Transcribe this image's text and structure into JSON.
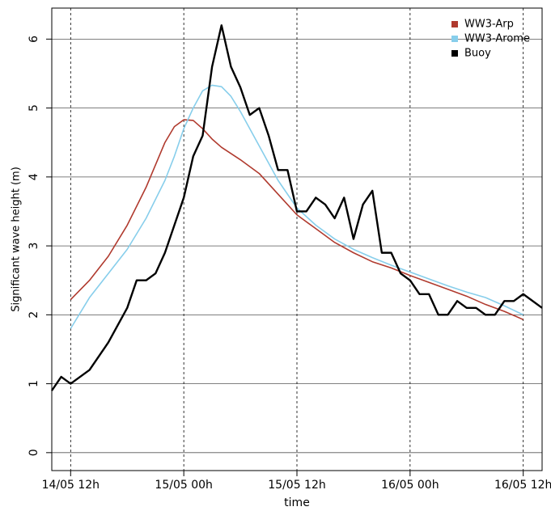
{
  "chart_data": {
    "type": "line",
    "x_label": "time",
    "y_label": "Significant wave height (m)",
    "xlim": [
      -2,
      50
    ],
    "ylim": [
      -0.26,
      6.45
    ],
    "xticks": [
      {
        "value": 0,
        "label": "14/05 12h"
      },
      {
        "value": 12,
        "label": "15/05 00h"
      },
      {
        "value": 24,
        "label": "15/05 12h"
      },
      {
        "value": 36,
        "label": "16/05 00h"
      },
      {
        "value": 48,
        "label": "16/05 12h"
      }
    ],
    "yticks": [
      0,
      1,
      2,
      3,
      4,
      5,
      6
    ],
    "grid": true,
    "legend": "top-right",
    "series": [
      {
        "name": "WW3-Arp",
        "color": "#b03a2e",
        "x": [
          0,
          2,
          4,
          6,
          8,
          10,
          11,
          12,
          13,
          14,
          15,
          16,
          18,
          20,
          22,
          24,
          26,
          28,
          30,
          32,
          34,
          36,
          38,
          40,
          42,
          44,
          46,
          48
        ],
        "values": [
          2.22,
          2.5,
          2.85,
          3.3,
          3.85,
          4.5,
          4.73,
          4.83,
          4.82,
          4.7,
          4.55,
          4.43,
          4.25,
          4.05,
          3.75,
          3.45,
          3.25,
          3.05,
          2.9,
          2.77,
          2.68,
          2.57,
          2.47,
          2.37,
          2.27,
          2.15,
          2.05,
          1.93
        ]
      },
      {
        "name": "WW3-Arome",
        "color": "#87ceeb",
        "x": [
          0,
          2,
          4,
          6,
          8,
          10,
          11,
          12,
          13,
          14,
          15,
          16,
          17,
          18,
          20,
          22,
          24,
          26,
          28,
          30,
          32,
          34,
          36,
          38,
          40,
          42,
          44,
          46,
          48
        ],
        "values": [
          1.8,
          2.25,
          2.6,
          2.95,
          3.4,
          3.95,
          4.3,
          4.7,
          5.0,
          5.25,
          5.33,
          5.31,
          5.17,
          4.95,
          4.45,
          3.95,
          3.55,
          3.3,
          3.1,
          2.95,
          2.83,
          2.72,
          2.62,
          2.52,
          2.42,
          2.33,
          2.25,
          2.13,
          2.0
        ]
      },
      {
        "name": "Buoy",
        "color": "#000000",
        "x": [
          -2,
          -1,
          0,
          2,
          4,
          6,
          7,
          8,
          9,
          10,
          11,
          12,
          13,
          14,
          15,
          16,
          17,
          18,
          19,
          20,
          21,
          22,
          23,
          24,
          25,
          26,
          27,
          28,
          29,
          30,
          31,
          32,
          33,
          34,
          35,
          36,
          37,
          38,
          39,
          40,
          41,
          42,
          43,
          44,
          45,
          46,
          47,
          48,
          50
        ],
        "values": [
          0.9,
          1.1,
          1.0,
          1.2,
          1.6,
          2.1,
          2.5,
          2.5,
          2.6,
          2.9,
          3.3,
          3.7,
          4.3,
          4.6,
          5.6,
          6.2,
          5.6,
          5.3,
          4.9,
          5.0,
          4.6,
          4.1,
          4.1,
          3.5,
          3.5,
          3.7,
          3.6,
          3.4,
          3.7,
          3.1,
          3.6,
          3.8,
          2.9,
          2.9,
          2.6,
          2.5,
          2.3,
          2.3,
          2.0,
          2.0,
          2.2,
          2.1,
          2.1,
          2.0,
          2.0,
          2.2,
          2.2,
          2.3,
          2.1
        ]
      }
    ]
  }
}
